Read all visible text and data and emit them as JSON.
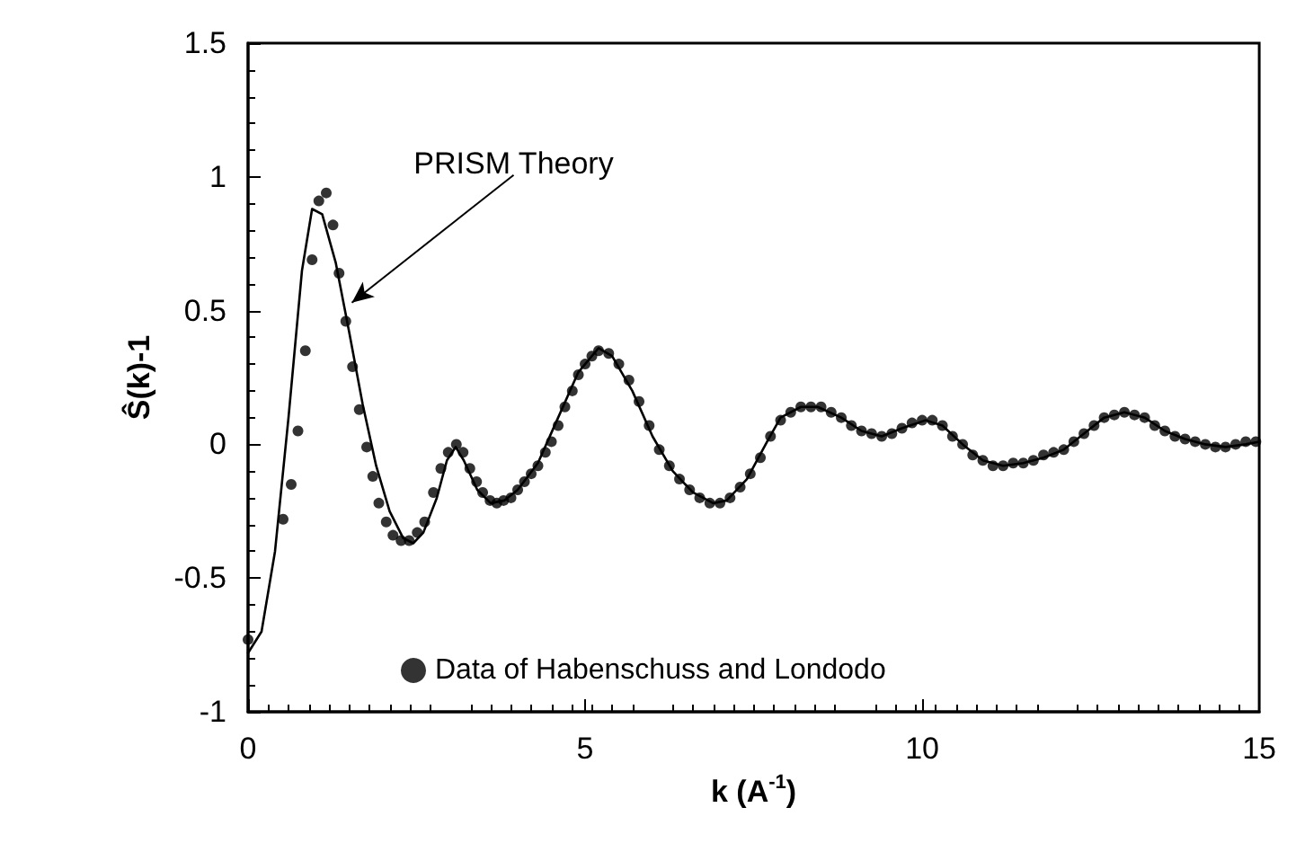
{
  "chart_data": {
    "type": "line",
    "xlabel": "k (A$^{-1}$)",
    "ylabel": "Ŝ(k)-1",
    "xlim": [
      0,
      15
    ],
    "xticks": [
      0,
      5,
      10,
      15
    ],
    "ylim": [
      -1,
      1.5
    ],
    "yticks": [
      -1,
      -0.5,
      0,
      0.5,
      1,
      1.5
    ],
    "grid": false,
    "legend": "bottom left",
    "annotations": [
      {
        "text": "PRISM Theory",
        "x": 1.54,
        "y": 0.53
      }
    ],
    "series": [
      {
        "type": "line",
        "color": "#000000",
        "marker": "none",
        "line_style": "solid",
        "x": [
          0,
          0.2,
          0.4,
          0.6,
          0.8,
          0.95,
          1.1,
          1.3,
          1.5,
          1.7,
          1.9,
          2.1,
          2.3,
          2.45,
          2.6,
          2.8,
          2.95,
          3.08,
          3.2,
          3.4,
          3.6,
          3.8,
          4.0,
          4.3,
          4.6,
          4.9,
          5.2,
          5.4,
          5.7,
          6.0,
          6.3,
          6.6,
          6.9,
          7.1,
          7.4,
          7.7,
          7.9,
          8.2,
          8.45,
          8.8,
          9.1,
          9.4,
          9.7,
          10.05,
          10.3,
          10.6,
          10.9,
          11.2,
          11.5,
          11.8,
          12.1,
          12.4,
          12.7,
          13.0,
          13.3,
          13.6,
          13.9,
          14.2,
          14.5,
          14.8,
          15
        ],
        "values": [
          -0.78,
          -0.7,
          -0.4,
          0.1,
          0.65,
          0.88,
          0.86,
          0.68,
          0.42,
          0.15,
          -0.08,
          -0.25,
          -0.35,
          -0.37,
          -0.33,
          -0.2,
          -0.06,
          -0.01,
          -0.06,
          -0.17,
          -0.22,
          -0.21,
          -0.17,
          -0.07,
          0.1,
          0.27,
          0.36,
          0.33,
          0.2,
          0.03,
          -0.1,
          -0.18,
          -0.22,
          -0.21,
          -0.13,
          0.01,
          0.1,
          0.14,
          0.14,
          0.1,
          0.05,
          0.03,
          0.06,
          0.09,
          0.07,
          0.0,
          -0.06,
          -0.08,
          -0.07,
          -0.05,
          -0.02,
          0.04,
          0.1,
          0.12,
          0.1,
          0.05,
          0.02,
          0.0,
          -0.01,
          0.0,
          0.01
        ]
      },
      {
        "type": "scatter",
        "name": "Data of Habenschuss and Londodo",
        "color": "#000000",
        "marker": "circle",
        "x": [
          0,
          0.52,
          0.64,
          0.74,
          0.85,
          0.95,
          1.05,
          1.16,
          1.26,
          1.35,
          1.45,
          1.55,
          1.65,
          1.76,
          1.85,
          1.94,
          2.05,
          2.15,
          2.27,
          2.39,
          2.51,
          2.62,
          2.75,
          2.86,
          2.97,
          3.09,
          3.19,
          3.29,
          3.39,
          3.48,
          3.59,
          3.69,
          3.79,
          3.9,
          4.0,
          4.1,
          4.2,
          4.3,
          4.41,
          4.5,
          4.6,
          4.7,
          4.81,
          4.9,
          5.0,
          5.1,
          5.2,
          5.35,
          5.5,
          5.65,
          5.8,
          5.95,
          6.1,
          6.25,
          6.4,
          6.55,
          6.7,
          6.85,
          7.0,
          7.15,
          7.3,
          7.45,
          7.6,
          7.75,
          7.9,
          8.05,
          8.2,
          8.35,
          8.5,
          8.65,
          8.8,
          8.95,
          9.1,
          9.25,
          9.4,
          9.55,
          9.7,
          9.85,
          10.0,
          10.15,
          10.3,
          10.45,
          10.6,
          10.75,
          10.9,
          11.05,
          11.2,
          11.35,
          11.5,
          11.65,
          11.8,
          11.95,
          12.1,
          12.25,
          12.4,
          12.55,
          12.7,
          12.85,
          13.0,
          13.15,
          13.3,
          13.45,
          13.6,
          13.75,
          13.9,
          14.05,
          14.2,
          14.35,
          14.5,
          14.65,
          14.8,
          14.95
        ],
        "values": [
          -0.73,
          -0.28,
          -0.15,
          0.05,
          0.35,
          0.69,
          0.91,
          0.94,
          0.82,
          0.64,
          0.46,
          0.29,
          0.13,
          -0.01,
          -0.12,
          -0.22,
          -0.29,
          -0.34,
          -0.36,
          -0.36,
          -0.33,
          -0.29,
          -0.18,
          -0.09,
          -0.03,
          0.0,
          -0.03,
          -0.09,
          -0.14,
          -0.18,
          -0.21,
          -0.22,
          -0.21,
          -0.2,
          -0.17,
          -0.14,
          -0.11,
          -0.08,
          -0.03,
          0.01,
          0.07,
          0.14,
          0.2,
          0.26,
          0.3,
          0.33,
          0.35,
          0.34,
          0.3,
          0.24,
          0.16,
          0.07,
          -0.02,
          -0.08,
          -0.13,
          -0.17,
          -0.2,
          -0.22,
          -0.22,
          -0.2,
          -0.16,
          -0.11,
          -0.05,
          0.03,
          0.09,
          0.12,
          0.14,
          0.14,
          0.14,
          0.12,
          0.1,
          0.07,
          0.05,
          0.04,
          0.03,
          0.04,
          0.06,
          0.08,
          0.09,
          0.09,
          0.07,
          0.03,
          0.0,
          -0.04,
          -0.06,
          -0.08,
          -0.08,
          -0.07,
          -0.07,
          -0.06,
          -0.04,
          -0.03,
          -0.02,
          0.01,
          0.04,
          0.07,
          0.1,
          0.11,
          0.12,
          0.11,
          0.1,
          0.07,
          0.05,
          0.03,
          0.02,
          0.01,
          0.0,
          -0.01,
          -0.01,
          0.0,
          0.01,
          0.01
        ]
      }
    ]
  }
}
